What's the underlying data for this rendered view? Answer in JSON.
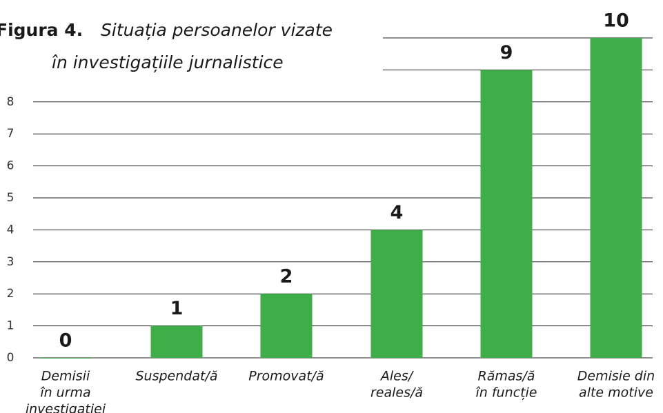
{
  "chart_data": {
    "type": "bar",
    "figure_label": "Figura 4.",
    "title": [
      "Situația persoanelor vizate",
      "în investigațiile jurnalistice"
    ],
    "categories": [
      [
        "Demisii",
        "în urma",
        "investigației"
      ],
      [
        "Suspendat/ă"
      ],
      [
        "Promovat/ă"
      ],
      [
        "Ales/",
        "reales/ă"
      ],
      [
        "Rămas/ă",
        "în funcție"
      ],
      [
        "Demisie din",
        "alte motive"
      ]
    ],
    "values": [
      0,
      1,
      2,
      4,
      9,
      10
    ],
    "color": "#3fae49",
    "ylim": [
      0,
      10
    ],
    "yticks": [
      0,
      1,
      2,
      3,
      4,
      5,
      6,
      7,
      8,
      {
        "value": 9,
        "label": null
      },
      {
        "value": 10,
        "label": null
      }
    ],
    "grid": true
  }
}
